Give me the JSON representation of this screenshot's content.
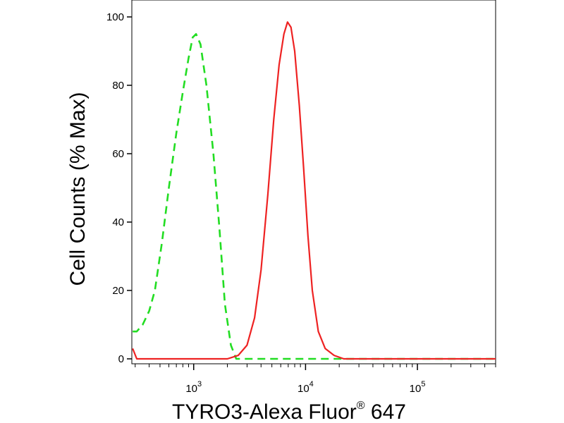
{
  "chart_data": {
    "type": "line",
    "title": "",
    "xlabel": "TYRO3-Alexa Fluor",
    "xlabel_superscript": "®",
    "xlabel_suffix": " 647",
    "ylabel": "Cell Counts (% Max)",
    "xscale": "log",
    "xlim": [
      280,
      500000
    ],
    "ylim": [
      0,
      100
    ],
    "grid": false,
    "y_ticks": [
      0,
      20,
      40,
      60,
      80,
      100
    ],
    "y_tick_labels": [
      "0",
      "20",
      "40",
      "60",
      "80",
      "100"
    ],
    "x_major_ticks": [
      {
        "value": 1000,
        "base": "10",
        "exp": "3"
      },
      {
        "value": 10000,
        "base": "10",
        "exp": "4"
      },
      {
        "value": 100000,
        "base": "10",
        "exp": "5"
      }
    ],
    "series": [
      {
        "color": "#22dd22",
        "style": "dashed",
        "points": [
          [
            285,
            8
          ],
          [
            310,
            8
          ],
          [
            350,
            10
          ],
          [
            400,
            14
          ],
          [
            450,
            20
          ],
          [
            520,
            34
          ],
          [
            600,
            50
          ],
          [
            700,
            66
          ],
          [
            800,
            78
          ],
          [
            900,
            88
          ],
          [
            980,
            94
          ],
          [
            1050,
            95
          ],
          [
            1150,
            92
          ],
          [
            1300,
            80
          ],
          [
            1500,
            60
          ],
          [
            1700,
            38
          ],
          [
            1900,
            16
          ],
          [
            2150,
            4
          ],
          [
            2400,
            0
          ],
          [
            3000,
            0
          ],
          [
            30000,
            0
          ],
          [
            500000,
            0
          ]
        ]
      },
      {
        "color": "#ee2222",
        "style": "solid",
        "points": [
          [
            285,
            3
          ],
          [
            310,
            0
          ],
          [
            2000,
            0
          ],
          [
            2500,
            1
          ],
          [
            3000,
            4
          ],
          [
            3500,
            12
          ],
          [
            4000,
            26
          ],
          [
            4600,
            48
          ],
          [
            5200,
            70
          ],
          [
            5800,
            86
          ],
          [
            6400,
            95
          ],
          [
            6900,
            98.5
          ],
          [
            7400,
            97
          ],
          [
            8000,
            90
          ],
          [
            8800,
            74
          ],
          [
            9600,
            56
          ],
          [
            10500,
            36
          ],
          [
            11500,
            20
          ],
          [
            13000,
            8
          ],
          [
            15000,
            3
          ],
          [
            18000,
            1
          ],
          [
            22000,
            0
          ],
          [
            500000,
            0
          ]
        ]
      }
    ]
  }
}
